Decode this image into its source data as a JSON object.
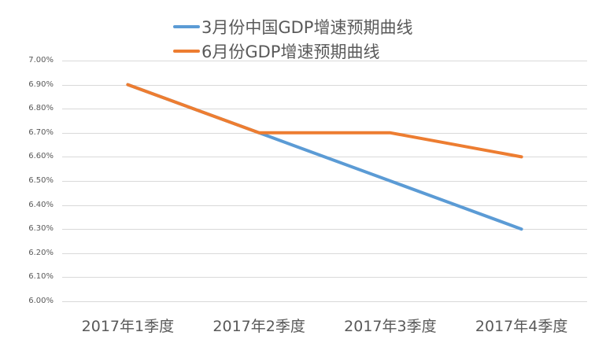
{
  "chart_data": {
    "type": "line",
    "title": "",
    "xlabel": "",
    "ylabel": "",
    "categories": [
      "2017年1季度",
      "2017年2季度",
      "2017年3季度",
      "2017年4季度"
    ],
    "series": [
      {
        "name": "3月份中国GDP增速预期曲线",
        "color": "#5B9BD5",
        "values": [
          6.9,
          6.7,
          6.5,
          6.3
        ]
      },
      {
        "name": "6月份GDP增速预期曲线",
        "color": "#ED7D31",
        "values": [
          6.9,
          6.7,
          6.7,
          6.6
        ]
      }
    ],
    "ylim": [
      6.0,
      7.0
    ],
    "yticks": [
      "6.00%",
      "6.10%",
      "6.20%",
      "6.30%",
      "6.40%",
      "6.50%",
      "6.60%",
      "6.70%",
      "6.80%",
      "6.90%",
      "7.00%"
    ],
    "ytick_values": [
      6.0,
      6.1,
      6.2,
      6.3,
      6.4,
      6.5,
      6.6,
      6.7,
      6.8,
      6.9,
      7.0
    ],
    "grid": true,
    "legend_position": "top"
  },
  "colors": {
    "grid": "#D9D9D9",
    "text": "#595959"
  }
}
